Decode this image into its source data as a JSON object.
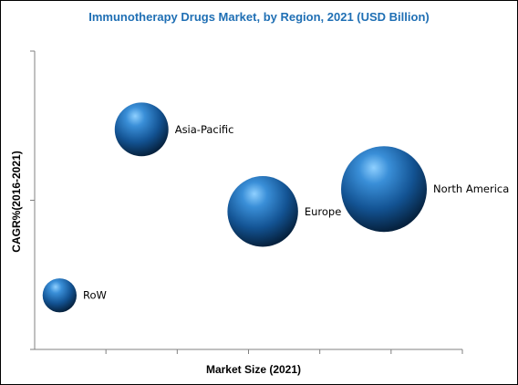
{
  "chart_data": {
    "type": "bubble",
    "title": "Immunotherapy Drugs Market, by Region, 2021 (USD Billion)",
    "xlabel": "Market Size (2021)",
    "ylabel": "CAGR%(2016-2021)",
    "grid": false,
    "legend": "none",
    "title_color": "#1F6FB4",
    "bubble_color": "#1A5E9E",
    "series": [
      {
        "name": "Asia-Pacific",
        "x": 1.5,
        "y": 5.9,
        "size": 0.55
      },
      {
        "name": "Europe",
        "x": 3.2,
        "y": 3.7,
        "size": 0.95
      },
      {
        "name": "North America",
        "x": 4.9,
        "y": 4.3,
        "size": 1.4
      },
      {
        "name": "RoW",
        "x": 0.35,
        "y": 1.45,
        "size": 0.22
      }
    ],
    "xlim": [
      0,
      6
    ],
    "ylim": [
      0,
      8
    ]
  }
}
